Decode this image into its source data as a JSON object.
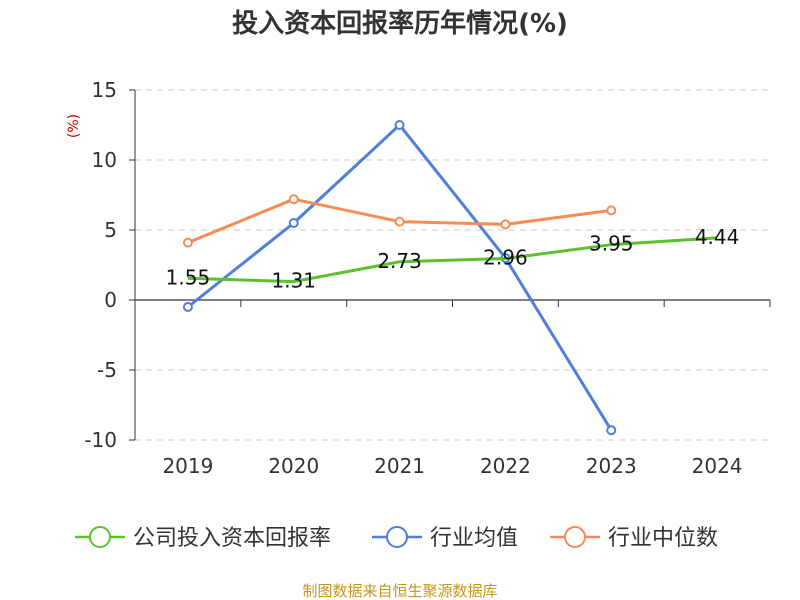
{
  "chart_data": {
    "type": "line",
    "title": "投入资本回报率历年情况(%)",
    "ylabel": "(%)",
    "xlabel": "",
    "categories": [
      "2019",
      "2020",
      "2021",
      "2022",
      "2023",
      "2024"
    ],
    "ylim": [
      -10,
      15
    ],
    "yticks": [
      -10,
      -5,
      0,
      5,
      10,
      15
    ],
    "grid": true,
    "legend_position": "bottom",
    "series": [
      {
        "name": "公司投入资本回报率",
        "color": "#5cc02f",
        "values": [
          1.55,
          1.31,
          2.73,
          2.96,
          3.95,
          4.44
        ],
        "labels": [
          "1.55",
          "1.31",
          "2.73",
          "2.96",
          "3.95",
          "4.44"
        ]
      },
      {
        "name": "行业均值",
        "color": "#4f7fdc",
        "values": [
          -0.5,
          5.5,
          12.5,
          3.0,
          -9.3,
          null
        ]
      },
      {
        "name": "行业中位数",
        "color": "#f58c55",
        "values": [
          4.1,
          7.2,
          5.6,
          5.4,
          6.4,
          null
        ]
      }
    ],
    "source": "制图数据来自恒生聚源数据库"
  }
}
